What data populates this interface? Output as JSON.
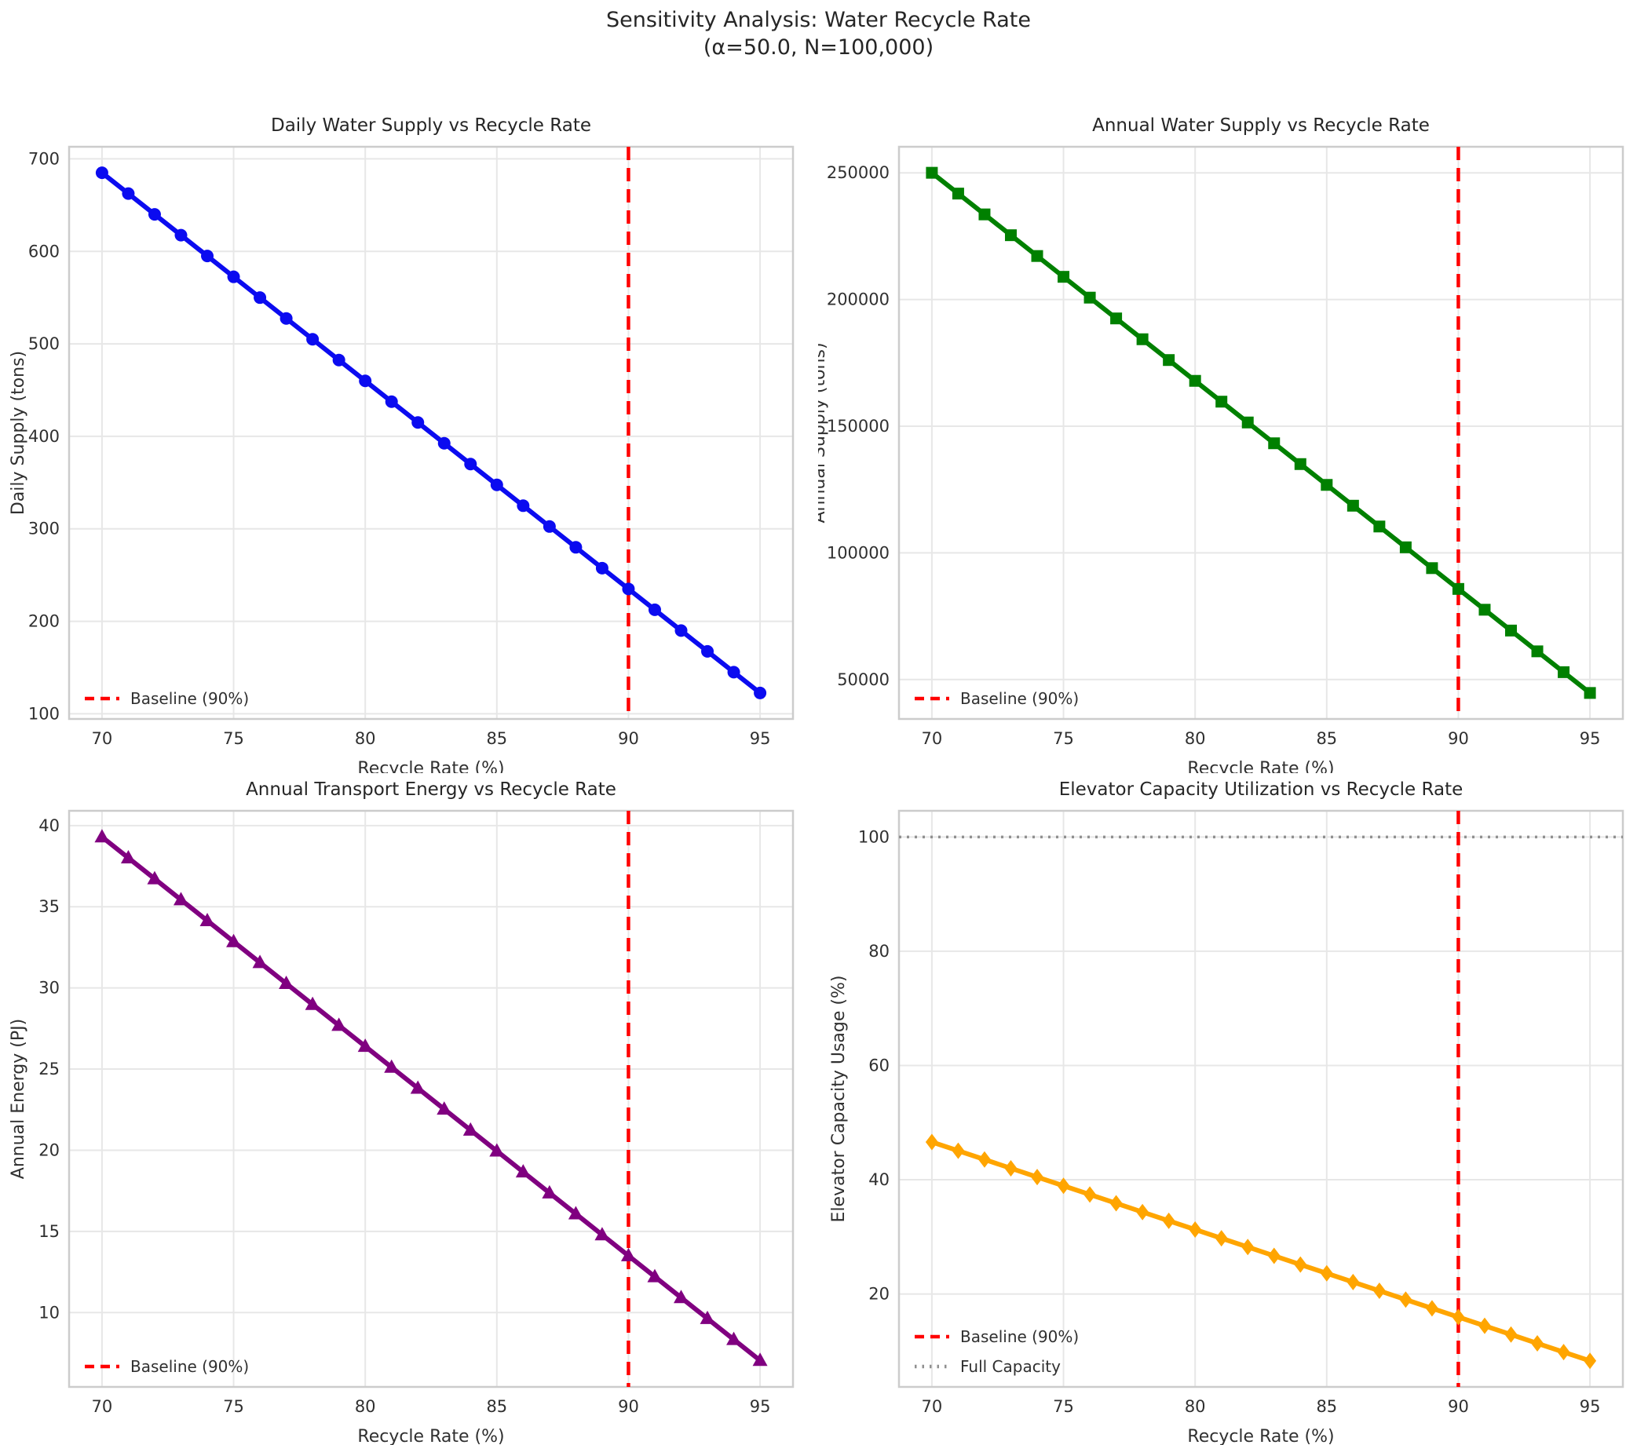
{
  "suptitle": {
    "line1": "Sensitivity Analysis: Water Recycle Rate",
    "line2": "(α=50.0, N=100,000)"
  },
  "chart_data": [
    {
      "id": "daily-water-supply",
      "type": "line",
      "title": "Daily Water Supply vs Recycle Rate",
      "xlabel": "Recycle Rate (%)",
      "ylabel": "Daily Supply (tons)",
      "x": [
        70,
        71,
        72,
        73,
        74,
        75,
        76,
        77,
        78,
        79,
        80,
        81,
        82,
        83,
        84,
        85,
        86,
        87,
        88,
        89,
        90,
        91,
        92,
        93,
        94,
        95
      ],
      "series": [
        {
          "name": "Daily Supply",
          "color": "#0b0bf0",
          "marker": "circle",
          "values": [
            685,
            662.5,
            640,
            617.5,
            595,
            572.5,
            550,
            527.5,
            505,
            482.5,
            460,
            437.5,
            415,
            392.5,
            370,
            347.5,
            325,
            302.5,
            280,
            257.5,
            235,
            212.5,
            190,
            167.5,
            145,
            122.5
          ]
        }
      ],
      "xlim": [
        68.75,
        96.25
      ],
      "ylim": [
        94.4,
        713.1
      ],
      "xticks": [
        70,
        75,
        80,
        85,
        90,
        95
      ],
      "yticks": [
        100,
        200,
        300,
        400,
        500,
        600,
        700
      ],
      "grid": true,
      "vline": {
        "x": 90,
        "color": "#ff0000",
        "style": "dashed",
        "label": "Baseline (90%)"
      },
      "legend": {
        "position": "lower left",
        "entries": [
          {
            "label": "Baseline (90%)",
            "color": "#ff0000",
            "style": "dashed"
          }
        ]
      }
    },
    {
      "id": "annual-water-supply",
      "type": "line",
      "title": "Annual Water Supply vs Recycle Rate",
      "xlabel": "Recycle Rate (%)",
      "ylabel": "Annual Supply (tons)",
      "x": [
        70,
        71,
        72,
        73,
        74,
        75,
        76,
        77,
        78,
        79,
        80,
        81,
        82,
        83,
        84,
        85,
        86,
        87,
        88,
        89,
        90,
        91,
        92,
        93,
        94,
        95
      ],
      "series": [
        {
          "name": "Annual Supply",
          "color": "#008000",
          "marker": "square",
          "values": [
            250025,
            241813,
            233600,
            225388,
            217175,
            208963,
            200750,
            192538,
            184325,
            176113,
            167900,
            159688,
            151475,
            143263,
            135050,
            126838,
            118625,
            110413,
            102200,
            93988,
            85775,
            77563,
            69350,
            61138,
            52925,
            44713
          ]
        }
      ],
      "xlim": [
        68.75,
        96.25
      ],
      "ylim": [
        34447,
        260291
      ],
      "xticks": [
        70,
        75,
        80,
        85,
        90,
        95
      ],
      "yticks": [
        50000,
        100000,
        150000,
        200000,
        250000
      ],
      "grid": true,
      "vline": {
        "x": 90,
        "color": "#ff0000",
        "style": "dashed",
        "label": "Baseline (90%)"
      },
      "legend": {
        "position": "lower left",
        "entries": [
          {
            "label": "Baseline (90%)",
            "color": "#ff0000",
            "style": "dashed"
          }
        ]
      }
    },
    {
      "id": "annual-transport-energy",
      "type": "line",
      "title": "Annual Transport Energy vs Recycle Rate",
      "xlabel": "Recycle Rate (%)",
      "ylabel": "Annual Energy (PJ)",
      "x": [
        70,
        71,
        72,
        73,
        74,
        75,
        76,
        77,
        78,
        79,
        80,
        81,
        82,
        83,
        84,
        85,
        86,
        87,
        88,
        89,
        90,
        91,
        92,
        93,
        94,
        95
      ],
      "series": [
        {
          "name": "Annual Energy",
          "color": "#800080",
          "marker": "triangle",
          "values": [
            39.3,
            38.01,
            36.72,
            35.43,
            34.14,
            32.85,
            31.56,
            30.27,
            28.98,
            27.69,
            26.4,
            25.11,
            23.82,
            22.53,
            21.24,
            19.95,
            18.66,
            17.37,
            16.08,
            14.79,
            13.5,
            12.21,
            10.92,
            9.63,
            8.34,
            7.05
          ]
        }
      ],
      "xlim": [
        68.75,
        96.25
      ],
      "ylim": [
        5.42,
        40.91
      ],
      "xticks": [
        70,
        75,
        80,
        85,
        90,
        95
      ],
      "yticks": [
        10,
        15,
        20,
        25,
        30,
        35,
        40
      ],
      "grid": true,
      "vline": {
        "x": 90,
        "color": "#ff0000",
        "style": "dashed",
        "label": "Baseline (90%)"
      },
      "legend": {
        "position": "lower left",
        "entries": [
          {
            "label": "Baseline (90%)",
            "color": "#ff0000",
            "style": "dashed"
          }
        ]
      }
    },
    {
      "id": "elevator-capacity-utilization",
      "type": "line",
      "title": "Elevator Capacity Utilization vs Recycle Rate",
      "xlabel": "Recycle Rate (%)",
      "ylabel": "Elevator Capacity Usage (%)",
      "x": [
        70,
        71,
        72,
        73,
        74,
        75,
        76,
        77,
        78,
        79,
        80,
        81,
        82,
        83,
        84,
        85,
        86,
        87,
        88,
        89,
        90,
        91,
        92,
        93,
        94,
        95
      ],
      "series": [
        {
          "name": "Elevator Capacity Usage",
          "color": "#ffa500",
          "marker": "diamond",
          "values": [
            46.6,
            45.07,
            43.54,
            42.0,
            40.47,
            38.94,
            37.41,
            35.88,
            34.34,
            32.81,
            31.28,
            29.75,
            28.22,
            26.68,
            25.15,
            23.62,
            22.09,
            20.56,
            19.02,
            17.49,
            15.96,
            14.43,
            12.9,
            11.36,
            9.83,
            8.3
          ]
        }
      ],
      "xlim": [
        68.75,
        96.25
      ],
      "ylim": [
        3.73,
        104.58
      ],
      "xticks": [
        70,
        75,
        80,
        85,
        90,
        95
      ],
      "yticks": [
        20,
        40,
        60,
        80,
        100
      ],
      "grid": true,
      "vline": {
        "x": 90,
        "color": "#ff0000",
        "style": "dashed",
        "label": "Baseline (90%)"
      },
      "hline": {
        "y": 100,
        "color": "#909090",
        "style": "dotted",
        "label": "Full Capacity"
      },
      "legend": {
        "position": "lower left",
        "entries": [
          {
            "label": "Baseline (90%)",
            "color": "#ff0000",
            "style": "dashed"
          },
          {
            "label": "Full Capacity",
            "color": "#909090",
            "style": "dotted"
          }
        ]
      }
    }
  ]
}
